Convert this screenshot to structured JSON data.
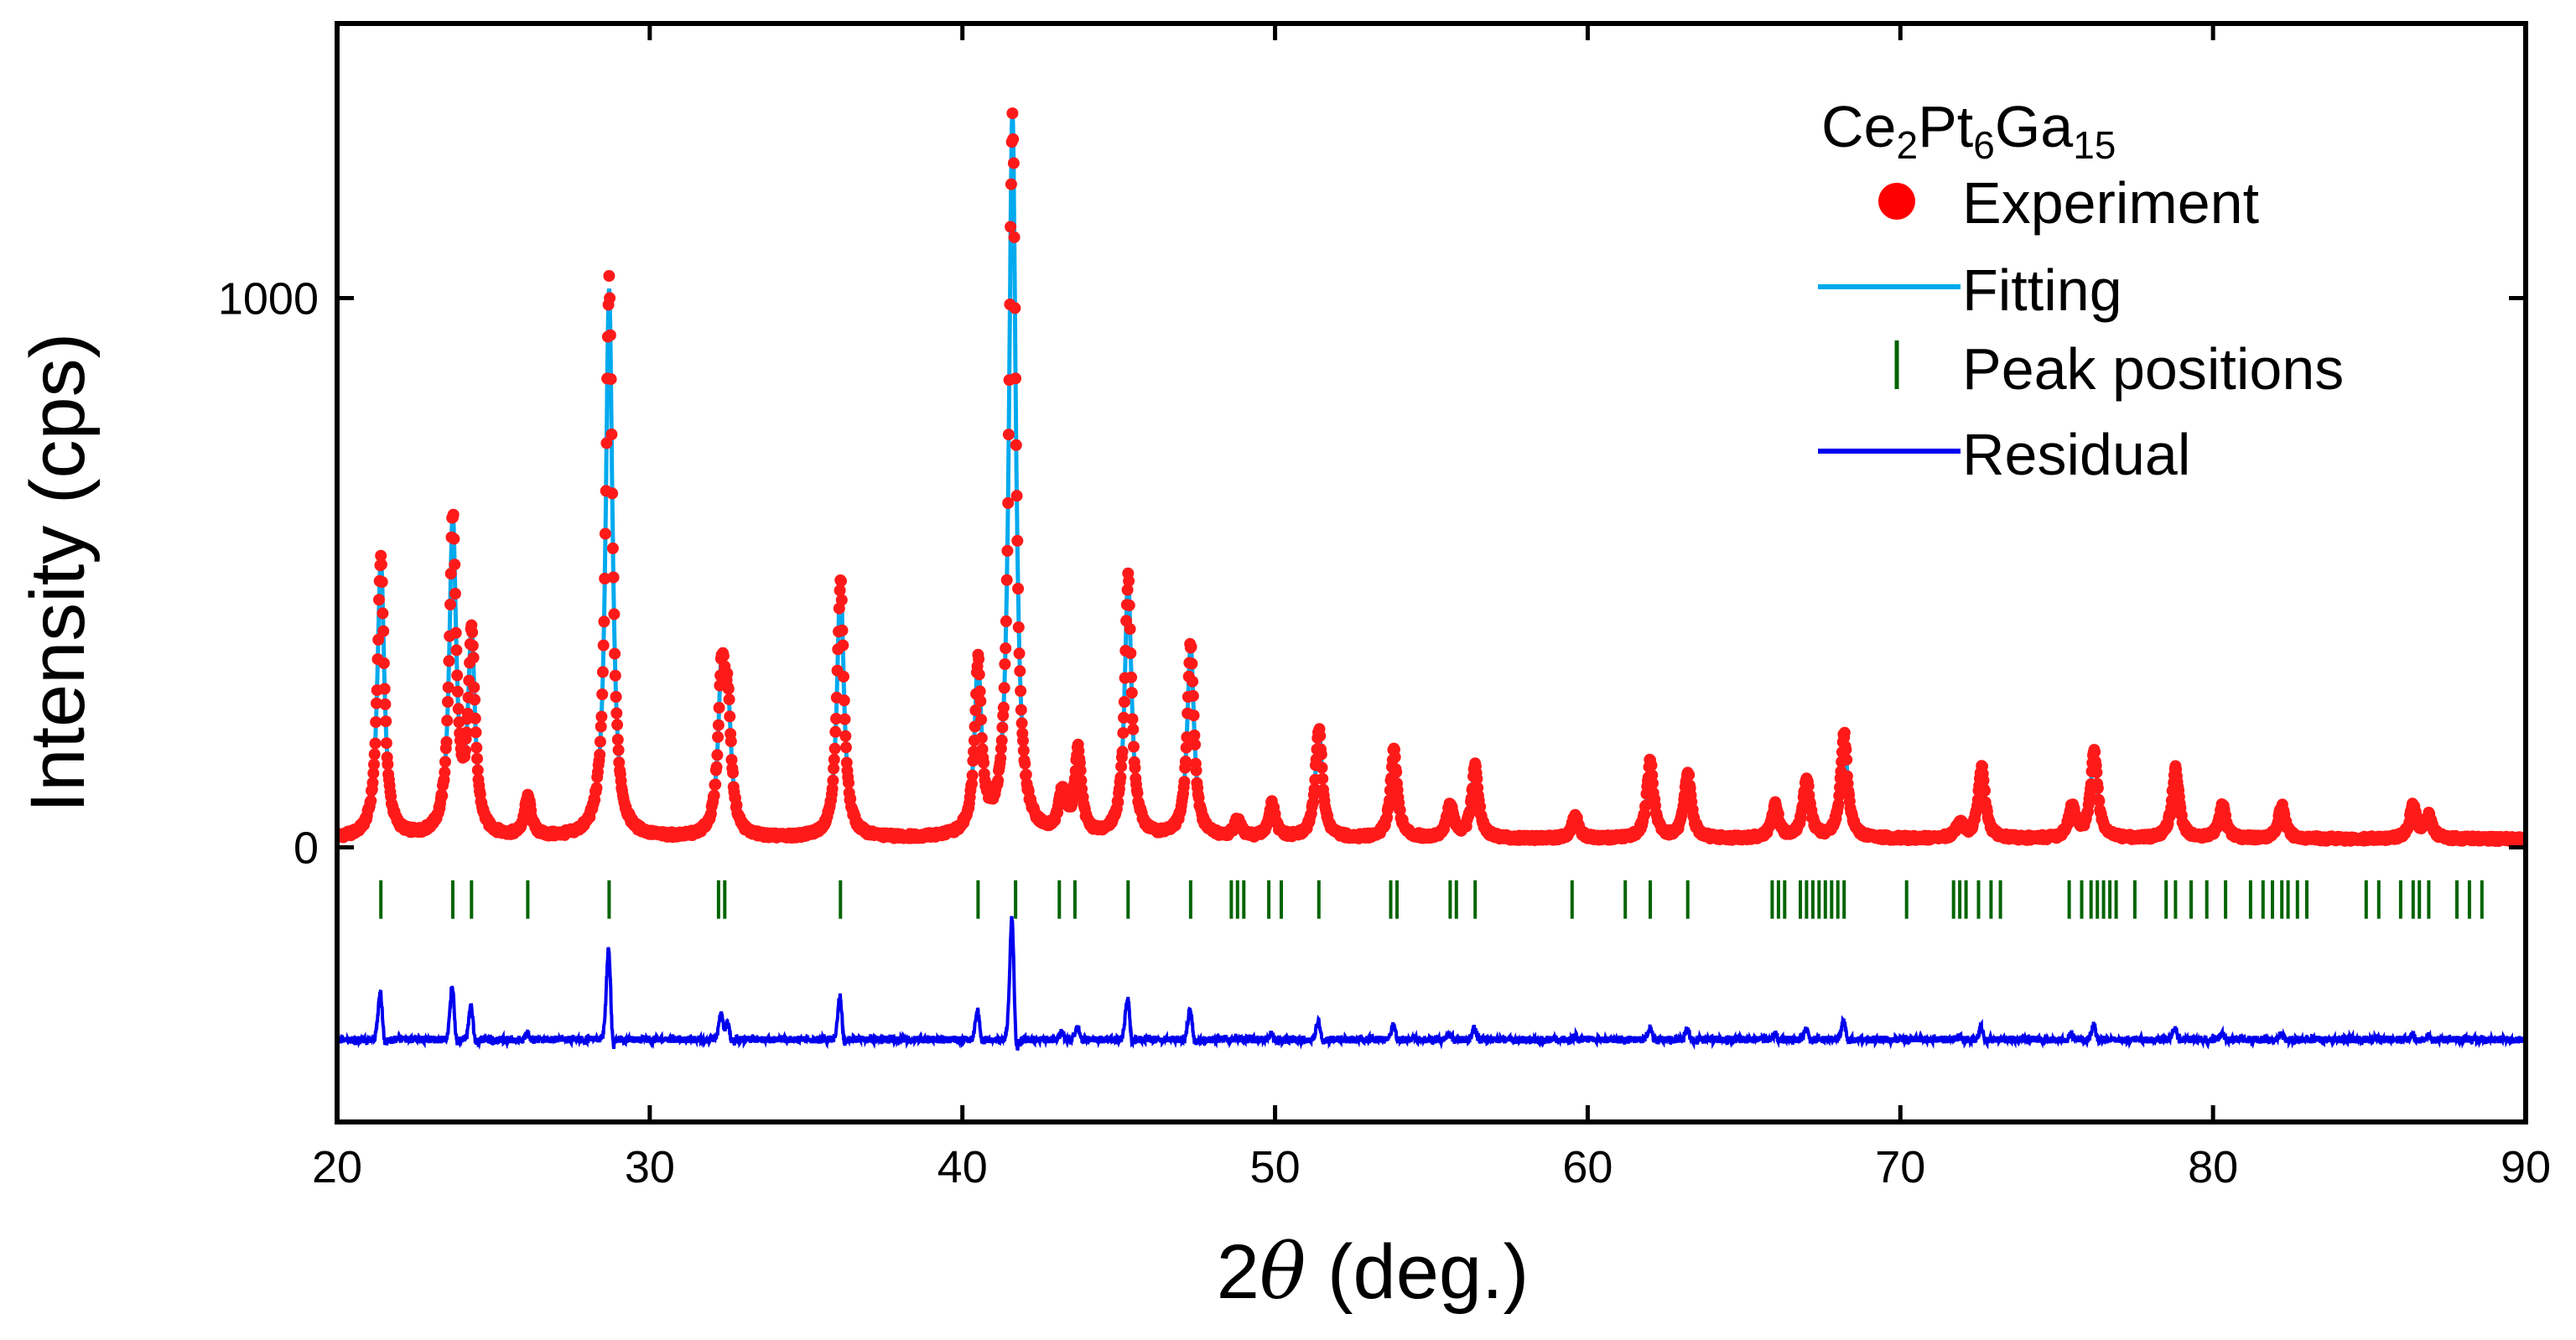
{
  "chart_data": {
    "type": "line",
    "xlabel_prefix": "2",
    "xlabel_symbol": "θ",
    "xlabel_suffix": " (deg.)",
    "ylabel": "Intensity (cps)",
    "xlim": [
      20,
      90
    ],
    "ylim": [
      -500,
      1500
    ],
    "xticks": [
      20,
      30,
      40,
      50,
      60,
      70,
      80,
      90
    ],
    "yticks": [
      0,
      1000
    ],
    "grid": false,
    "legend": {
      "placement": "top-right",
      "title_parts": [
        "Ce",
        "2",
        "Pt",
        "6",
        "Ga",
        "15"
      ],
      "entries": [
        {
          "label": "Experiment",
          "marker": "dot",
          "color": "#ff0000"
        },
        {
          "label": "Fitting",
          "marker": "line",
          "color": "#00aaee"
        },
        {
          "label": "Peak positions",
          "marker": "tick",
          "color": "#006400"
        },
        {
          "label": "Residual",
          "marker": "line",
          "color": "#0000ee"
        }
      ]
    },
    "background": 15,
    "peaks": [
      {
        "x": 21.4,
        "y": 510
      },
      {
        "x": 23.7,
        "y": 575
      },
      {
        "x": 24.3,
        "y": 360
      },
      {
        "x": 26.1,
        "y": 70
      },
      {
        "x": 28.7,
        "y": 1000
      },
      {
        "x": 32.3,
        "y": 280
      },
      {
        "x": 32.5,
        "y": 200
      },
      {
        "x": 36.1,
        "y": 470
      },
      {
        "x": 40.5,
        "y": 310
      },
      {
        "x": 41.6,
        "y": 1320
      },
      {
        "x": 43.2,
        "y": 80
      },
      {
        "x": 43.7,
        "y": 150
      },
      {
        "x": 45.3,
        "y": 470
      },
      {
        "x": 47.3,
        "y": 350
      },
      {
        "x": 48.8,
        "y": 30
      },
      {
        "x": 49.9,
        "y": 60
      },
      {
        "x": 51.4,
        "y": 200
      },
      {
        "x": 53.8,
        "y": 160
      },
      {
        "x": 55.6,
        "y": 60
      },
      {
        "x": 56.4,
        "y": 130
      },
      {
        "x": 59.6,
        "y": 40
      },
      {
        "x": 62.0,
        "y": 140
      },
      {
        "x": 63.2,
        "y": 120
      },
      {
        "x": 66.0,
        "y": 60
      },
      {
        "x": 67.0,
        "y": 110
      },
      {
        "x": 68.2,
        "y": 190
      },
      {
        "x": 71.9,
        "y": 30
      },
      {
        "x": 72.6,
        "y": 130
      },
      {
        "x": 75.5,
        "y": 60
      },
      {
        "x": 76.2,
        "y": 160
      },
      {
        "x": 78.8,
        "y": 130
      },
      {
        "x": 80.3,
        "y": 60
      },
      {
        "x": 82.2,
        "y": 60
      },
      {
        "x": 86.4,
        "y": 60
      },
      {
        "x": 86.9,
        "y": 40
      }
    ],
    "peak_positions": [
      21.4,
      23.7,
      24.3,
      26.1,
      28.7,
      32.2,
      32.4,
      36.1,
      40.5,
      41.7,
      43.1,
      43.6,
      45.3,
      47.3,
      48.6,
      48.8,
      49.0,
      49.8,
      50.2,
      51.4,
      53.7,
      53.9,
      55.6,
      55.8,
      56.4,
      59.5,
      61.2,
      62.0,
      63.2,
      65.9,
      66.1,
      66.3,
      66.8,
      67.0,
      67.2,
      67.4,
      67.6,
      67.8,
      68.0,
      68.2,
      70.2,
      71.7,
      71.9,
      72.1,
      72.5,
      72.9,
      73.2,
      75.4,
      75.8,
      76.1,
      76.3,
      76.5,
      76.7,
      76.9,
      77.5,
      78.5,
      78.8,
      79.3,
      79.8,
      80.4,
      81.2,
      81.6,
      81.9,
      82.2,
      82.4,
      82.7,
      83.0,
      84.9,
      85.3,
      86.0,
      86.4,
      86.6,
      86.9,
      87.8,
      88.2,
      88.6
    ],
    "peak_marker_y": [
      -60,
      -130
    ],
    "residual_offset": -350
  }
}
